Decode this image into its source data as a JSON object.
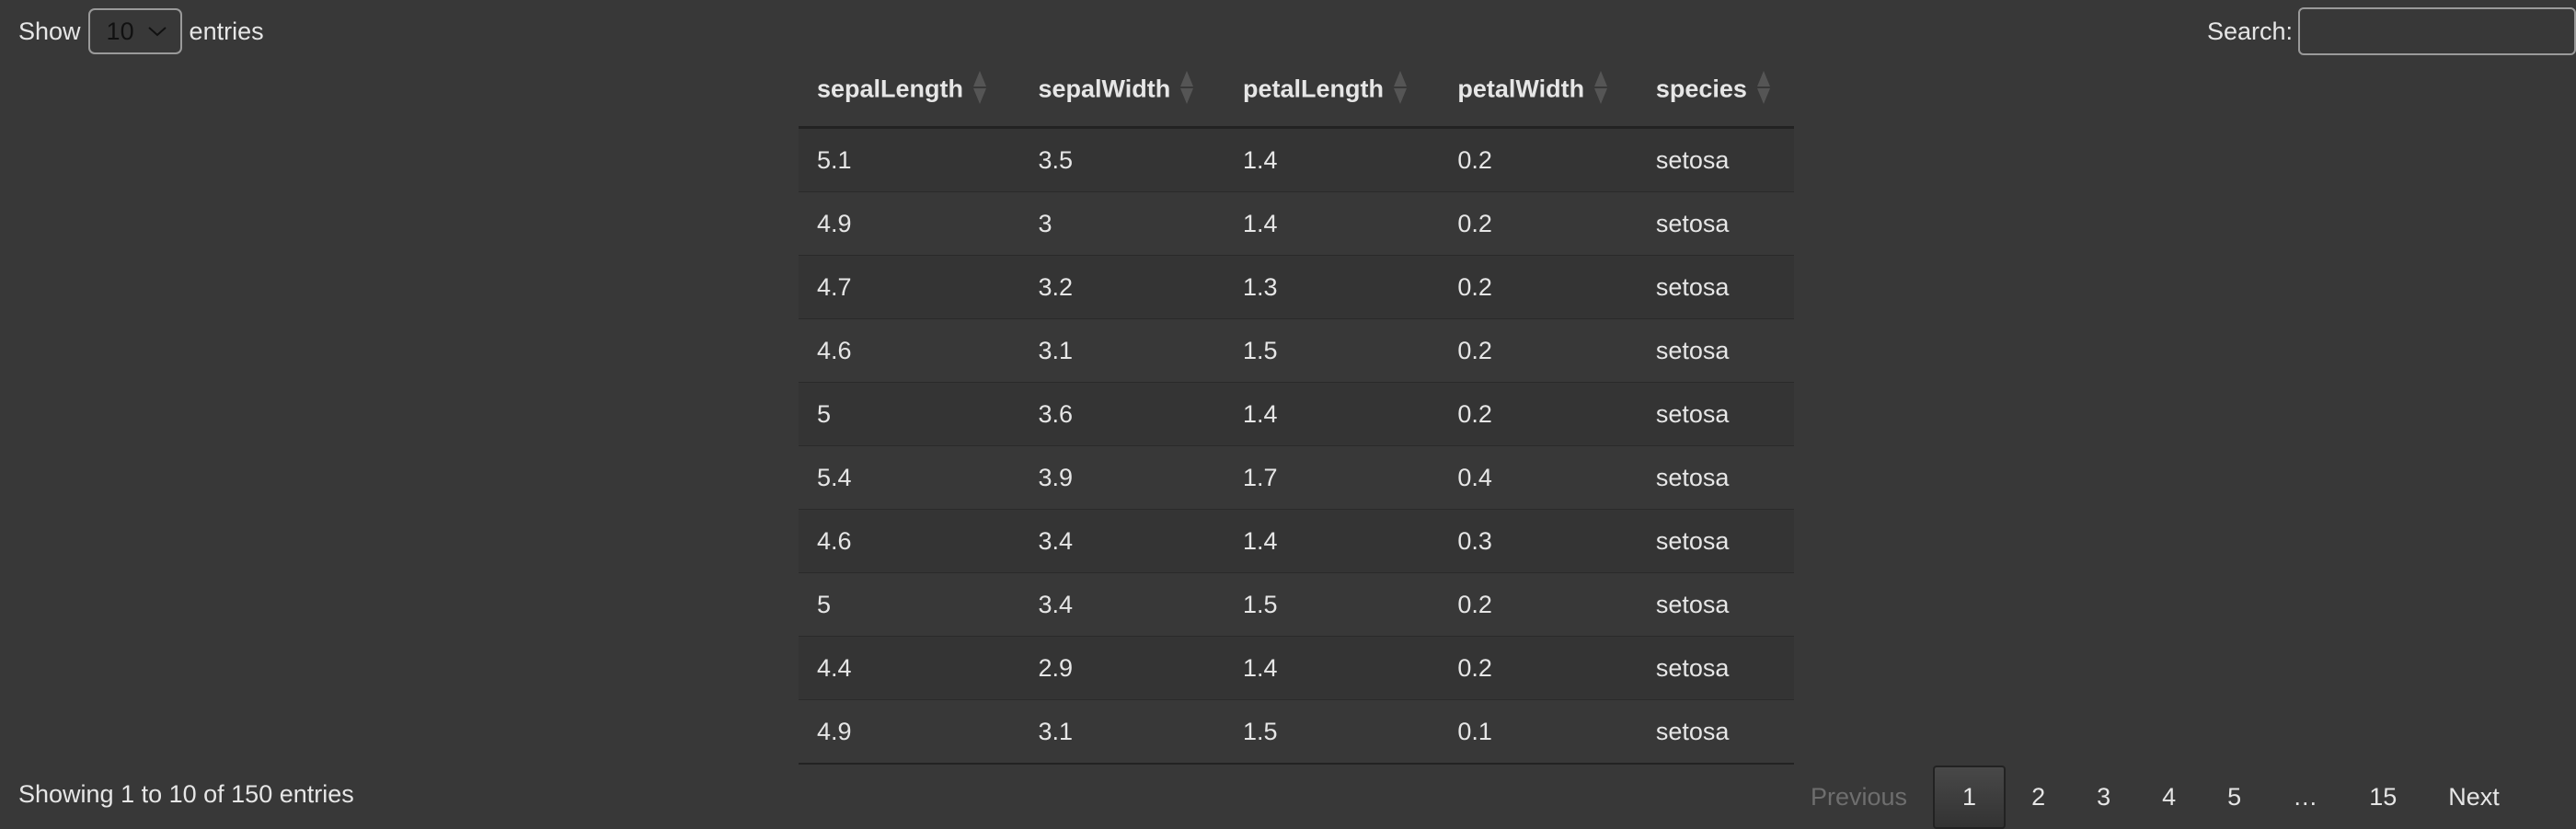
{
  "length_menu": {
    "prefix": "Show",
    "value": "10",
    "suffix": "entries"
  },
  "search": {
    "label": "Search:",
    "value": ""
  },
  "table": {
    "columns": [
      "sepalLength",
      "sepalWidth",
      "petalLength",
      "petalWidth",
      "species"
    ],
    "rows": [
      [
        "5.1",
        "3.5",
        "1.4",
        "0.2",
        "setosa"
      ],
      [
        "4.9",
        "3",
        "1.4",
        "0.2",
        "setosa"
      ],
      [
        "4.7",
        "3.2",
        "1.3",
        "0.2",
        "setosa"
      ],
      [
        "4.6",
        "3.1",
        "1.5",
        "0.2",
        "setosa"
      ],
      [
        "5",
        "3.6",
        "1.4",
        "0.2",
        "setosa"
      ],
      [
        "5.4",
        "3.9",
        "1.7",
        "0.4",
        "setosa"
      ],
      [
        "4.6",
        "3.4",
        "1.4",
        "0.3",
        "setosa"
      ],
      [
        "5",
        "3.4",
        "1.5",
        "0.2",
        "setosa"
      ],
      [
        "4.4",
        "2.9",
        "1.4",
        "0.2",
        "setosa"
      ],
      [
        "4.9",
        "3.1",
        "1.5",
        "0.1",
        "setosa"
      ]
    ]
  },
  "info": "Showing 1 to 10 of 150 entries",
  "pagination": {
    "previous": "Previous",
    "pages": [
      "1",
      "2",
      "3",
      "4",
      "5",
      "…",
      "15"
    ],
    "current": "1",
    "next": "Next"
  }
}
